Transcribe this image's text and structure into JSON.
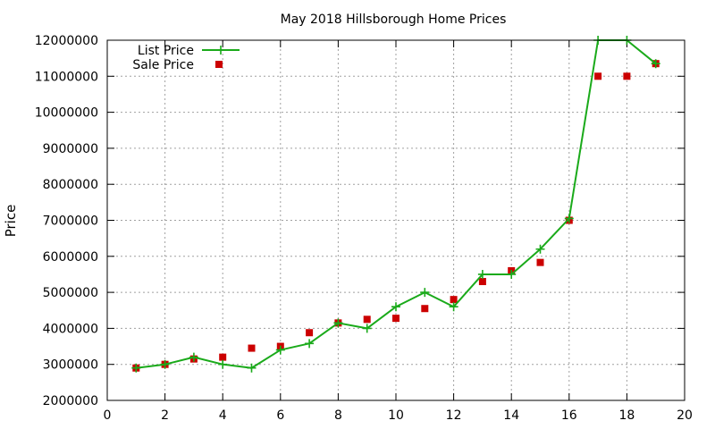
{
  "chart_data": {
    "type": "line",
    "title": "May 2018 Hillsborough Home Prices",
    "xlabel": "",
    "ylabel": "Price",
    "xlim": [
      0,
      20
    ],
    "ylim": [
      2000000,
      12000000
    ],
    "x_ticks": [
      0,
      2,
      4,
      6,
      8,
      10,
      12,
      14,
      16,
      18,
      20
    ],
    "y_ticks": [
      2000000,
      3000000,
      4000000,
      5000000,
      6000000,
      7000000,
      8000000,
      9000000,
      10000000,
      11000000,
      12000000
    ],
    "grid": true,
    "legend_position": "top-left",
    "series": [
      {
        "name": "List Price",
        "style": "line-with-plus-markers",
        "color": "#1aaa1a",
        "points": [
          [
            1,
            2900000
          ],
          [
            2,
            3000000
          ],
          [
            3,
            3200000
          ],
          [
            4,
            3000000
          ],
          [
            5,
            2900000
          ],
          [
            6,
            3400000
          ],
          [
            7,
            3580000
          ],
          [
            8,
            4150000
          ],
          [
            9,
            4000000
          ],
          [
            10,
            4600000
          ],
          [
            11,
            5000000
          ],
          [
            12,
            4600000
          ],
          [
            13,
            5500000
          ],
          [
            14,
            5500000
          ],
          [
            15,
            6200000
          ],
          [
            16,
            7050000
          ],
          [
            17,
            12000000
          ],
          [
            18,
            12000000
          ],
          [
            19,
            11350000
          ]
        ]
      },
      {
        "name": "Sale Price",
        "style": "square-markers",
        "color": "#cc0000",
        "points": [
          [
            1,
            2900000
          ],
          [
            2,
            3000000
          ],
          [
            3,
            3150000
          ],
          [
            4,
            3200000
          ],
          [
            5,
            3450000
          ],
          [
            6,
            3500000
          ],
          [
            7,
            3880000
          ],
          [
            8,
            4150000
          ],
          [
            9,
            4250000
          ],
          [
            10,
            4280000
          ],
          [
            11,
            4550000
          ],
          [
            12,
            4800000
          ],
          [
            13,
            5300000
          ],
          [
            14,
            5600000
          ],
          [
            15,
            5830000
          ],
          [
            16,
            7000000
          ],
          [
            17,
            11000000
          ],
          [
            18,
            11000000
          ],
          [
            19,
            11350000
          ]
        ]
      }
    ]
  }
}
